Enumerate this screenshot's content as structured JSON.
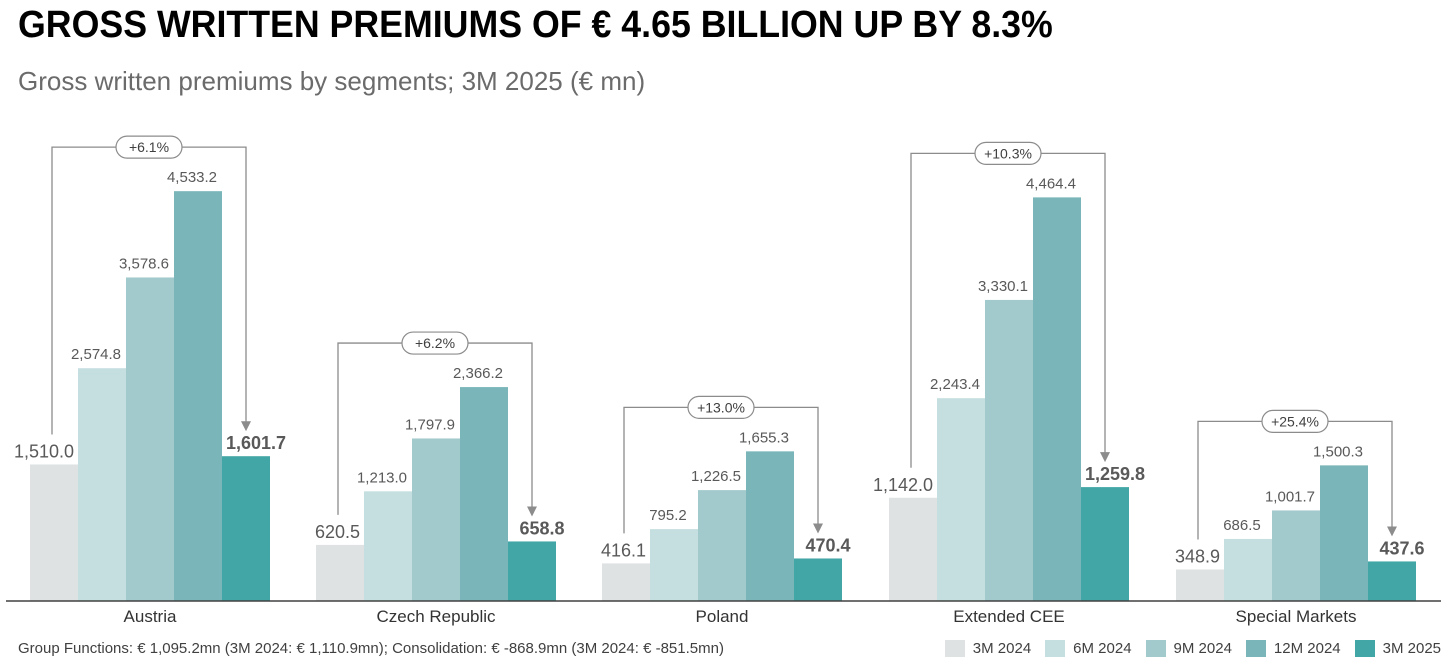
{
  "header": {
    "title": "GROSS WRITTEN PREMIUMS OF € 4.65 BILLION UP BY 8.3%",
    "subtitle": "Gross written premiums by segments; 3M 2025 (€ mn)"
  },
  "footnote": "Group Functions: € 1,095.2mn (3M 2024: € 1,110.9mn); Consolidation: € -868.9mn (3M 2024: € -851.5mn)",
  "chart_data": {
    "type": "bar",
    "title": "Gross written premiums by segments; 3M 2025 (€ mn)",
    "xlabel": "",
    "ylabel": "",
    "ylim": [
      0,
      4900
    ],
    "grid": false,
    "legend_position": "bottom-right",
    "categories": [
      "Austria",
      "Czech Republic",
      "Poland",
      "Extended CEE",
      "Special Markets"
    ],
    "series": [
      {
        "name": "3M 2024",
        "color": "#dfe2e3",
        "values": [
          1510.0,
          620.5,
          416.1,
          1142.0,
          348.9
        ],
        "labels": [
          "1,510.0",
          "620.5",
          "416.1",
          "1,142.0",
          "348.9"
        ]
      },
      {
        "name": "6M 2024",
        "color": "#c5dedf",
        "values": [
          2574.8,
          1213.0,
          795.2,
          2243.4,
          686.5
        ],
        "labels": [
          "2,574.8",
          "1,213.0",
          "795.2",
          "2,243.4",
          "686.5"
        ]
      },
      {
        "name": "9M 2024",
        "color": "#a2c9cb",
        "values": [
          3578.6,
          1797.9,
          1226.5,
          3330.1,
          1001.7
        ],
        "labels": [
          "3,578.6",
          "1,797.9",
          "1,226.5",
          "3,330.1",
          "1,001.7"
        ]
      },
      {
        "name": "12M 2024",
        "color": "#7ab6b9",
        "values": [
          4533.2,
          2366.2,
          1655.3,
          4464.4,
          1500.3
        ],
        "labels": [
          "4,533.2",
          "2,366.2",
          "1,655.3",
          "4,464.4",
          "1,500.3"
        ]
      },
      {
        "name": "3M 2025",
        "color": "#43a6a6",
        "values": [
          1601.7,
          658.8,
          470.4,
          1259.8,
          437.6
        ],
        "labels": [
          "1,601.7",
          "658.8",
          "470.4",
          "1,259.8",
          "437.6"
        ]
      }
    ],
    "annotations": [
      {
        "category": "Austria",
        "text": "+6.1%"
      },
      {
        "category": "Czech Republic",
        "text": "+6.2%"
      },
      {
        "category": "Poland",
        "text": "+13.0%"
      },
      {
        "category": "Extended CEE",
        "text": "+10.3%"
      },
      {
        "category": "Special Markets",
        "text": "+25.4%"
      }
    ]
  }
}
